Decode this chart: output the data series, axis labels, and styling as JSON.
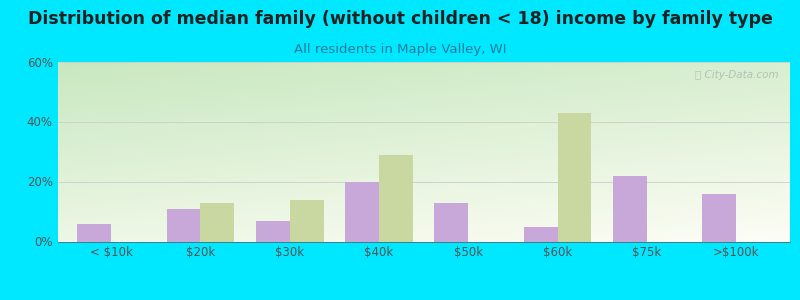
{
  "title": "Distribution of median family (without children < 18) income by family type",
  "subtitle": "All residents in Maple Valley, WI",
  "categories": [
    "< $10k",
    "$20k",
    "$30k",
    "$40k",
    "$50k",
    "$60k",
    "$75k",
    ">$100k"
  ],
  "married_couple": [
    6,
    11,
    7,
    20,
    13,
    5,
    22,
    16
  ],
  "female_no_husband": [
    0,
    13,
    14,
    29,
    0,
    43,
    0,
    0
  ],
  "married_color": "#c8a8d8",
  "female_color": "#c8d8a0",
  "background_outer": "#00e8ff",
  "background_plot_top_left": "#c8e8c0",
  "background_plot_top_right": "#e8f8e8",
  "background_plot_bottom": "#fdfdf5",
  "title_color": "#222222",
  "subtitle_color": "#2a7a9a",
  "axis_color": "#555555",
  "grid_color": "#cccccc",
  "ylim": [
    0,
    60
  ],
  "yticks": [
    0,
    20,
    40,
    60
  ],
  "bar_width": 0.38,
  "title_fontsize": 12.5,
  "subtitle_fontsize": 9.5,
  "tick_fontsize": 8.5,
  "legend_fontsize": 9
}
